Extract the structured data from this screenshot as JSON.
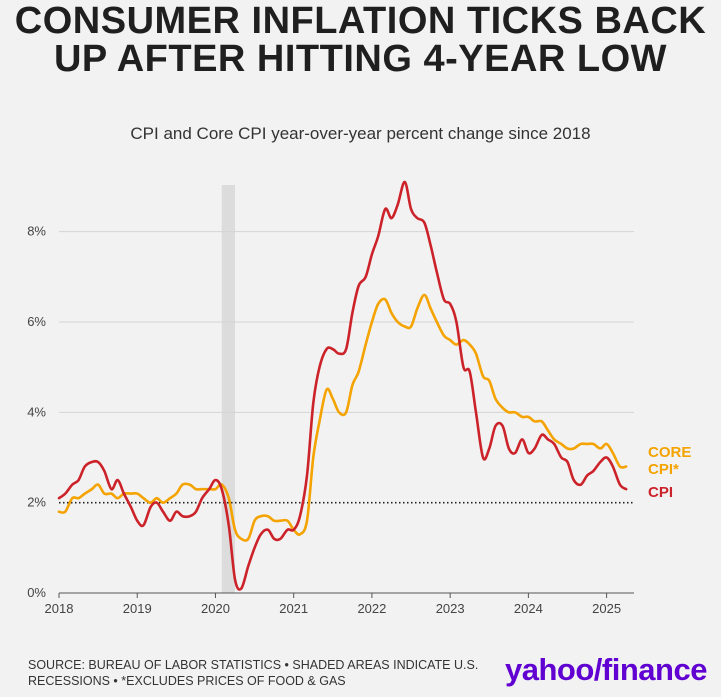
{
  "title": "CONSUMER INFLATION TICKS BACK UP AFTER HITTING 4-YEAR LOW",
  "subtitle": "CPI and Core CPI year-over-year percent change since 2018",
  "footer": "SOURCE: BUREAU OF LABOR STATISTICS • SHADED AREAS INDICATE U.S. RECESSIONS • *EXCLUDES PRICES OF FOOD & GAS",
  "logo": {
    "part1": "yahoo/",
    "part2": "finance"
  },
  "colors": {
    "cpi": "#cc2229",
    "core": "#f4a300",
    "grid": "#d4d4d4",
    "recession": "#dcdcdc",
    "text": "#333333"
  },
  "chart_data": {
    "type": "line",
    "xlim": [
      2018,
      2025.35
    ],
    "ylim": [
      0,
      9
    ],
    "x_ticks": [
      2018,
      2019,
      2020,
      2021,
      2022,
      2023,
      2024,
      2025
    ],
    "x_tick_labels": [
      "2018",
      "2019",
      "2020",
      "2021",
      "2022",
      "2023",
      "2024",
      "2025"
    ],
    "y_ticks": [
      0,
      2,
      4,
      6,
      8
    ],
    "y_tick_labels": [
      "0%",
      "2%",
      "4%",
      "6%",
      "8%"
    ],
    "reference_line": 2,
    "recession": [
      2020.08,
      2020.25
    ],
    "grid": true,
    "series": [
      {
        "name": "CPI",
        "label": "CPI",
        "color": "#cc2229",
        "x": [
          2018.0,
          2018.08,
          2018.17,
          2018.25,
          2018.33,
          2018.42,
          2018.5,
          2018.58,
          2018.67,
          2018.75,
          2018.83,
          2018.92,
          2019.0,
          2019.08,
          2019.17,
          2019.25,
          2019.33,
          2019.42,
          2019.5,
          2019.58,
          2019.67,
          2019.75,
          2019.83,
          2019.92,
          2020.0,
          2020.08,
          2020.17,
          2020.25,
          2020.33,
          2020.42,
          2020.5,
          2020.58,
          2020.67,
          2020.75,
          2020.83,
          2020.92,
          2021.0,
          2021.08,
          2021.17,
          2021.25,
          2021.33,
          2021.42,
          2021.5,
          2021.58,
          2021.67,
          2021.75,
          2021.83,
          2021.92,
          2022.0,
          2022.08,
          2022.17,
          2022.25,
          2022.33,
          2022.42,
          2022.5,
          2022.58,
          2022.67,
          2022.75,
          2022.83,
          2022.92,
          2023.0,
          2023.08,
          2023.17,
          2023.25,
          2023.33,
          2023.42,
          2023.5,
          2023.58,
          2023.67,
          2023.75,
          2023.83,
          2023.92,
          2024.0,
          2024.08,
          2024.17,
          2024.25,
          2024.33,
          2024.42,
          2024.5,
          2024.58,
          2024.67,
          2024.75,
          2024.83,
          2024.92,
          2025.0,
          2025.08,
          2025.17,
          2025.25
        ],
        "values": [
          2.1,
          2.2,
          2.4,
          2.5,
          2.8,
          2.9,
          2.9,
          2.7,
          2.3,
          2.5,
          2.2,
          1.9,
          1.6,
          1.5,
          1.9,
          2.0,
          1.8,
          1.6,
          1.8,
          1.7,
          1.7,
          1.8,
          2.1,
          2.3,
          2.5,
          2.3,
          1.5,
          0.3,
          0.1,
          0.6,
          1.0,
          1.3,
          1.4,
          1.2,
          1.2,
          1.4,
          1.4,
          1.7,
          2.6,
          4.2,
          5.0,
          5.4,
          5.4,
          5.3,
          5.4,
          6.2,
          6.8,
          7.0,
          7.5,
          7.9,
          8.5,
          8.3,
          8.6,
          9.1,
          8.5,
          8.3,
          8.2,
          7.7,
          7.1,
          6.5,
          6.4,
          6.0,
          5.0,
          4.9,
          4.0,
          3.0,
          3.2,
          3.7,
          3.7,
          3.2,
          3.1,
          3.4,
          3.1,
          3.2,
          3.5,
          3.4,
          3.3,
          3.0,
          2.9,
          2.5,
          2.4,
          2.6,
          2.7,
          2.9,
          3.0,
          2.8,
          2.4,
          2.3
        ]
      },
      {
        "name": "CORE CPI*",
        "label": "CORE CPI*",
        "color": "#f4a300",
        "x": [
          2018.0,
          2018.08,
          2018.17,
          2018.25,
          2018.33,
          2018.42,
          2018.5,
          2018.58,
          2018.67,
          2018.75,
          2018.83,
          2018.92,
          2019.0,
          2019.08,
          2019.17,
          2019.25,
          2019.33,
          2019.42,
          2019.5,
          2019.58,
          2019.67,
          2019.75,
          2019.83,
          2019.92,
          2020.0,
          2020.08,
          2020.17,
          2020.25,
          2020.33,
          2020.42,
          2020.5,
          2020.58,
          2020.67,
          2020.75,
          2020.83,
          2020.92,
          2021.0,
          2021.08,
          2021.17,
          2021.25,
          2021.33,
          2021.42,
          2021.5,
          2021.58,
          2021.67,
          2021.75,
          2021.83,
          2021.92,
          2022.0,
          2022.08,
          2022.17,
          2022.25,
          2022.33,
          2022.42,
          2022.5,
          2022.58,
          2022.67,
          2022.75,
          2022.83,
          2022.92,
          2023.0,
          2023.08,
          2023.17,
          2023.25,
          2023.33,
          2023.42,
          2023.5,
          2023.58,
          2023.67,
          2023.75,
          2023.83,
          2023.92,
          2024.0,
          2024.08,
          2024.17,
          2024.25,
          2024.33,
          2024.42,
          2024.5,
          2024.58,
          2024.67,
          2024.75,
          2024.83,
          2024.92,
          2025.0,
          2025.08,
          2025.17,
          2025.25
        ],
        "values": [
          1.8,
          1.8,
          2.1,
          2.1,
          2.2,
          2.3,
          2.4,
          2.2,
          2.2,
          2.1,
          2.2,
          2.2,
          2.2,
          2.1,
          2.0,
          2.1,
          2.0,
          2.1,
          2.2,
          2.4,
          2.4,
          2.3,
          2.3,
          2.3,
          2.3,
          2.4,
          2.1,
          1.4,
          1.2,
          1.2,
          1.6,
          1.7,
          1.7,
          1.6,
          1.6,
          1.6,
          1.4,
          1.3,
          1.6,
          3.0,
          3.8,
          4.5,
          4.3,
          4.0,
          4.0,
          4.6,
          4.9,
          5.5,
          6.0,
          6.4,
          6.5,
          6.2,
          6.0,
          5.9,
          5.9,
          6.3,
          6.6,
          6.3,
          6.0,
          5.7,
          5.6,
          5.5,
          5.6,
          5.5,
          5.3,
          4.8,
          4.7,
          4.3,
          4.1,
          4.0,
          4.0,
          3.9,
          3.9,
          3.8,
          3.8,
          3.6,
          3.4,
          3.3,
          3.2,
          3.2,
          3.3,
          3.3,
          3.3,
          3.2,
          3.3,
          3.1,
          2.8,
          2.8
        ]
      }
    ]
  }
}
